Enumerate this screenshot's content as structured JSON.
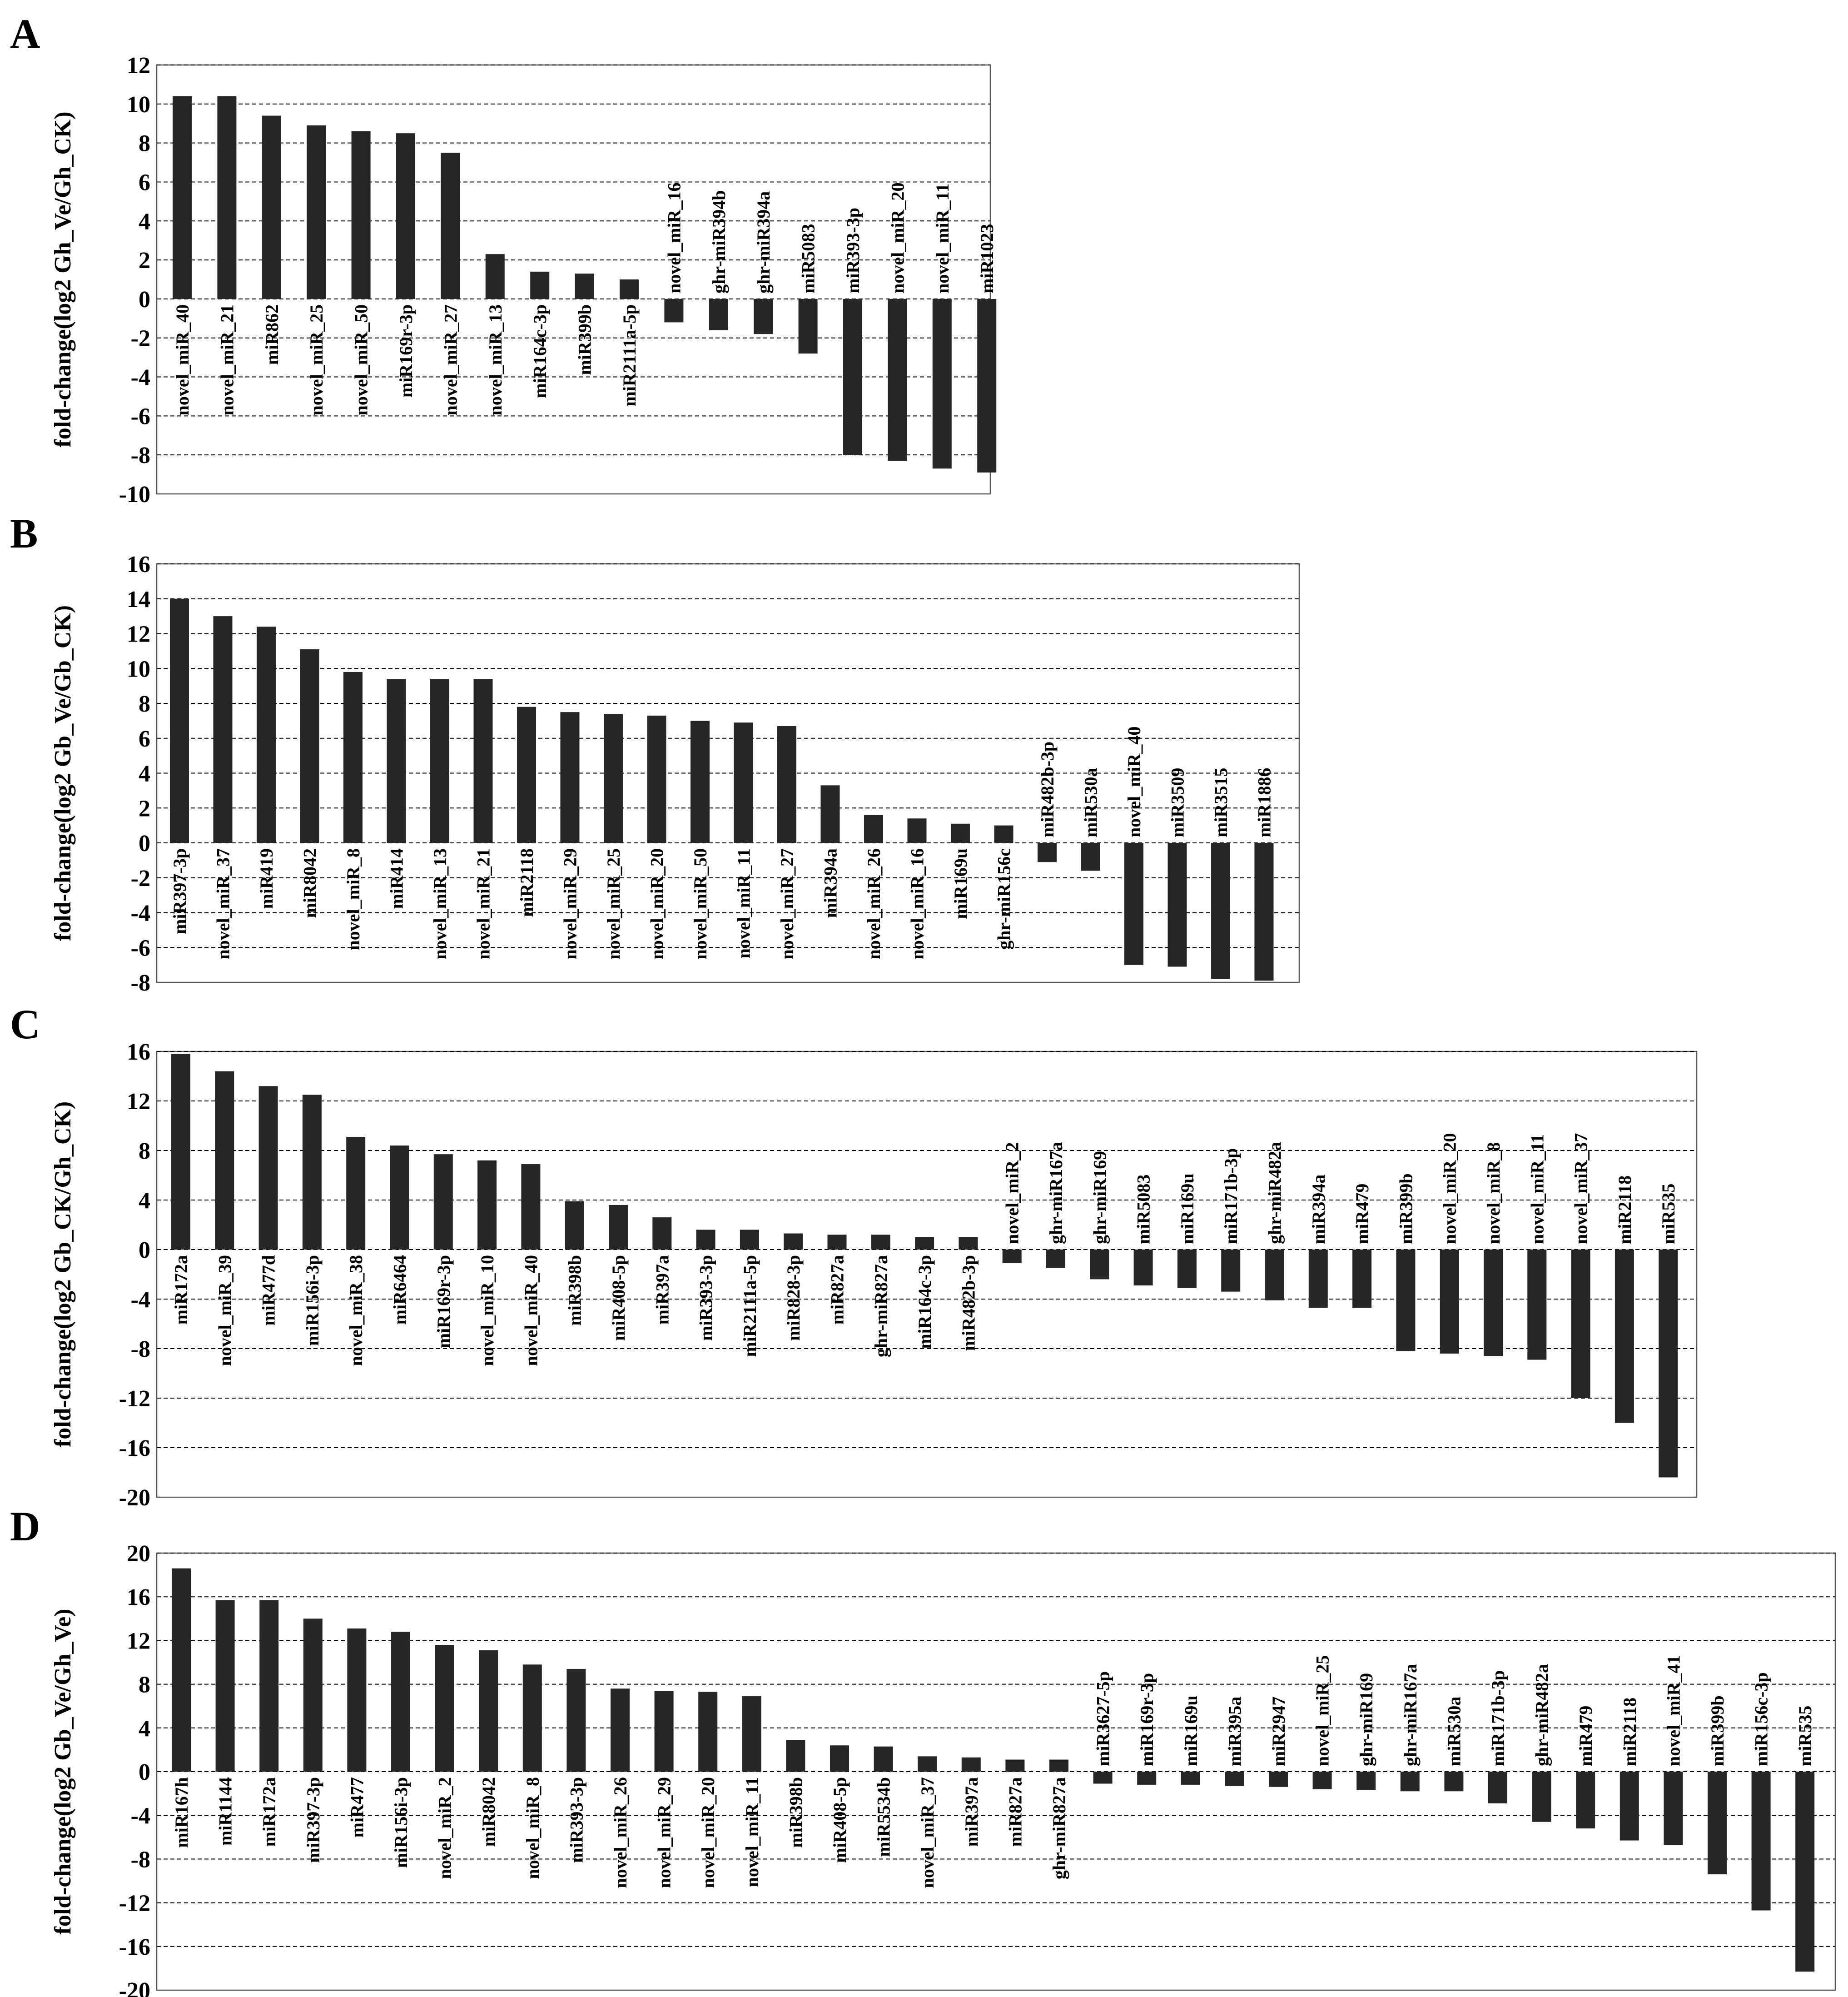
{
  "chart_data": [
    {
      "panel": "A",
      "type": "bar",
      "ylabel": "fold-change(log2 Gh_Ve/Gh_CK)",
      "ylim": [
        -10,
        12
      ],
      "yticks": [
        12,
        10,
        8,
        6,
        4,
        2,
        0,
        -2,
        -4,
        -6,
        -8,
        -10
      ],
      "grid": "horizontal-dashed",
      "categories": [
        "novel_miR_40",
        "novel_miR_21",
        "miR862",
        "novel_miR_25",
        "novel_miR_50",
        "miR169r-3p",
        "novel_miR_27",
        "novel_miR_13",
        "miR164c-3p",
        "miR399b",
        "miR2111a-5p",
        "novel_miR_16",
        "ghr-miR394b",
        "ghr-miR394a",
        "miR5083",
        "miR393-3p",
        "novel_miR_20",
        "novel_miR_11",
        "miR1023"
      ],
      "values": [
        10.4,
        10.4,
        9.4,
        8.9,
        8.6,
        8.5,
        7.5,
        2.3,
        1.4,
        1.3,
        1.0,
        -1.2,
        -1.6,
        -1.8,
        -2.8,
        -8.0,
        -8.3,
        -8.7,
        -8.9
      ]
    },
    {
      "panel": "B",
      "type": "bar",
      "ylabel": "fold-change(log2 Gb_Ve/Gb_CK)",
      "ylim": [
        -8,
        16
      ],
      "yticks": [
        16,
        14,
        12,
        10,
        8,
        6,
        4,
        2,
        0,
        -2,
        -4,
        -6,
        -8
      ],
      "grid": "horizontal-dashed",
      "categories": [
        "miR397-3p",
        "novel_miR_37",
        "miR419",
        "miR8042",
        "novel_miR_8",
        "miR414",
        "novel_miR_13",
        "novel_miR_21",
        "miR2118",
        "novel_miR_29",
        "novel_miR_25",
        "novel_miR_20",
        "novel_miR_50",
        "novel_miR_11",
        "novel_miR_27",
        "miR394a",
        "novel_miR_26",
        "novel_miR_16",
        "miR169u",
        "ghr-miR156c",
        "miR482b-3p",
        "miR530a",
        "novel_miR_40",
        "miR3509",
        "miR3515",
        "miR1886"
      ],
      "values": [
        14.0,
        13.0,
        12.4,
        11.1,
        9.8,
        9.4,
        9.4,
        9.4,
        7.8,
        7.5,
        7.4,
        7.3,
        7.0,
        6.9,
        6.7,
        3.3,
        1.6,
        1.4,
        1.1,
        1.0,
        -1.1,
        -1.6,
        -7.0,
        -7.1,
        -7.8,
        -7.9
      ]
    },
    {
      "panel": "C",
      "type": "bar",
      "ylabel": "fold-change(log2 Gb_CK/Gh_CK)",
      "ylim": [
        -20,
        16
      ],
      "yticks": [
        16,
        12,
        8,
        4,
        0,
        -4,
        -8,
        -12,
        -16,
        -20
      ],
      "grid": "horizontal-dashed",
      "categories": [
        "miR172a",
        "novel_miR_39",
        "miR477d",
        "miR156i-3p",
        "novel_miR_38",
        "miR6464",
        "miR169r-3p",
        "novel_miR_10",
        "novel_miR_40",
        "miR398b",
        "miR408-5p",
        "miR397a",
        "miR393-3p",
        "miR2111a-5p",
        "miR828-3p",
        "miR827a",
        "ghr-miR827a",
        "miR164c-3p",
        "miR482b-3p",
        "novel_miR_2",
        "ghr-miR167a",
        "ghr-miR169",
        "miR5083",
        "miR169u",
        "miR171b-3p",
        "ghr-miR482a",
        "miR394a",
        "miR479",
        "miR399b",
        "novel_miR_20",
        "novel_miR_8",
        "novel_miR_11",
        "novel_miR_37",
        "miR2118",
        "miR535"
      ],
      "values": [
        15.8,
        14.4,
        13.2,
        12.5,
        9.1,
        8.4,
        7.7,
        7.2,
        6.9,
        3.9,
        3.6,
        2.6,
        1.6,
        1.6,
        1.3,
        1.2,
        1.2,
        1.0,
        1.0,
        -1.1,
        -1.5,
        -2.4,
        -2.9,
        -3.1,
        -3.4,
        -4.1,
        -4.7,
        -4.7,
        -8.2,
        -8.4,
        -8.6,
        -8.9,
        -12.0,
        -14.0,
        -18.4
      ]
    },
    {
      "panel": "D",
      "type": "bar",
      "ylabel": "fold-change(log2 Gb_Ve/Gh_Ve)",
      "ylim": [
        -20,
        20
      ],
      "yticks": [
        20,
        16,
        12,
        8,
        4,
        0,
        -4,
        -8,
        -12,
        -16,
        -20
      ],
      "grid": "horizontal-dashed",
      "categories": [
        "miR167h",
        "miR1144",
        "miR172a",
        "miR397-3p",
        "miR477",
        "miR156i-3p",
        "novel_miR_2",
        "miR8042",
        "novel_miR_8",
        "miR393-3p",
        "novel_miR_26",
        "novel_miR_29",
        "novel_miR_20",
        "novel_miR_11",
        "miR398b",
        "miR408-5p",
        "miR5534b",
        "novel_miR_37",
        "miR397a",
        "miR827a",
        "ghr-miR827a",
        "miR3627-5p",
        "miR169r-3p",
        "miR169u",
        "miR395a",
        "miR2947",
        "novel_miR_25",
        "ghr-miR169",
        "ghr-miR167a",
        "miR530a",
        "miR171b-3p",
        "ghr-miR482a",
        "miR479",
        "miR2118",
        "novel_miR_41",
        "miR399b",
        "miR156c-3p",
        "miR535"
      ],
      "values": [
        18.6,
        15.7,
        15.7,
        14.0,
        13.1,
        12.8,
        11.6,
        11.1,
        9.8,
        9.4,
        7.6,
        7.4,
        7.3,
        6.9,
        2.9,
        2.4,
        2.3,
        1.4,
        1.3,
        1.1,
        1.1,
        -1.1,
        -1.2,
        -1.2,
        -1.3,
        -1.4,
        -1.6,
        -1.7,
        -1.8,
        -1.8,
        -2.9,
        -4.6,
        -5.2,
        -6.3,
        -6.7,
        -9.4,
        -12.7,
        -18.3
      ]
    }
  ]
}
